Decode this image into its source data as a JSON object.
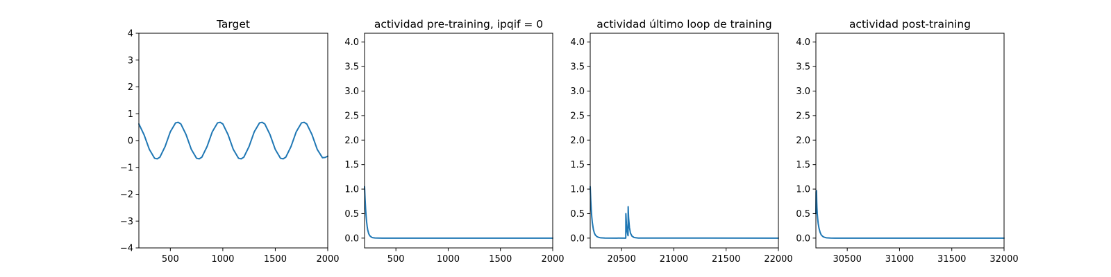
{
  "chart_data": [
    {
      "type": "line",
      "title": "Target",
      "xlabel": "",
      "ylabel": "",
      "xlim": [
        200,
        2000
      ],
      "ylim": [
        -4,
        4
      ],
      "xticks": [
        500,
        1000,
        1500,
        2000
      ],
      "yticks": [
        -4,
        -3,
        -2,
        -1,
        0,
        1,
        2,
        3,
        4
      ],
      "ytick_labels": [
        "−4",
        "−3",
        "−2",
        "−1",
        "0",
        "1",
        "2",
        "3",
        "4"
      ],
      "color": "#1f77b4",
      "series": [
        {
          "x": [
            200,
            250,
            300,
            350,
            375,
            400,
            450,
            500,
            550,
            575,
            600,
            650,
            700,
            750,
            775,
            800,
            850,
            900,
            950,
            975,
            1000,
            1050,
            1100,
            1150,
            1175,
            1200,
            1250,
            1300,
            1350,
            1375,
            1400,
            1450,
            1500,
            1550,
            1575,
            1600,
            1650,
            1700,
            1750,
            1775,
            1800,
            1850,
            1900,
            1950,
            1975,
            2000
          ],
          "y": [
            0.62,
            0.21,
            -0.33,
            -0.66,
            -0.68,
            -0.62,
            -0.22,
            0.33,
            0.66,
            0.68,
            0.62,
            0.22,
            -0.33,
            -0.66,
            -0.68,
            -0.62,
            -0.22,
            0.33,
            0.66,
            0.68,
            0.62,
            0.22,
            -0.33,
            -0.66,
            -0.68,
            -0.62,
            -0.22,
            0.33,
            0.66,
            0.68,
            0.62,
            0.22,
            -0.33,
            -0.66,
            -0.68,
            -0.62,
            -0.22,
            0.33,
            0.66,
            0.68,
            0.62,
            0.22,
            -0.33,
            -0.64,
            -0.63,
            -0.58
          ]
        }
      ]
    },
    {
      "type": "line",
      "title": "actividad pre-training, ipqif = 0",
      "xlabel": "",
      "ylabel": "",
      "xlim": [
        200,
        2000
      ],
      "ylim": [
        -0.2,
        4.18
      ],
      "xticks": [
        500,
        1000,
        1500,
        2000
      ],
      "yticks": [
        0.0,
        0.5,
        1.0,
        1.5,
        2.0,
        2.5,
        3.0,
        3.5,
        4.0
      ],
      "ytick_labels": [
        "0.0",
        "0.5",
        "1.0",
        "1.5",
        "2.0",
        "2.5",
        "3.0",
        "3.5",
        "4.0"
      ],
      "color": "#1f77b4",
      "series": [
        {
          "x": [
            200,
            205,
            210,
            215,
            220,
            225,
            230,
            240,
            250,
            260,
            270,
            280,
            300,
            330,
            370,
            2000
          ],
          "y": [
            1.05,
            0.8,
            0.6,
            0.45,
            0.33,
            0.24,
            0.17,
            0.09,
            0.05,
            0.03,
            0.015,
            0.008,
            0.003,
            0.001,
            0.0,
            0.0
          ]
        }
      ]
    },
    {
      "type": "line",
      "title": "actividad último loop de training",
      "xlabel": "",
      "ylabel": "",
      "xlim": [
        20200,
        22000
      ],
      "ylim": [
        -0.2,
        4.18
      ],
      "xticks": [
        20500,
        21000,
        21500,
        22000
      ],
      "yticks": [
        0.0,
        0.5,
        1.0,
        1.5,
        2.0,
        2.5,
        3.0,
        3.5,
        4.0
      ],
      "ytick_labels": [
        "0.0",
        "0.5",
        "1.0",
        "1.5",
        "2.0",
        "2.5",
        "3.0",
        "3.5",
        "4.0"
      ],
      "color": "#1f77b4",
      "series": [
        {
          "x": [
            20200,
            20205,
            20210,
            20215,
            20220,
            20230,
            20240,
            20250,
            20265,
            20280,
            20300,
            20340,
            20540,
            20541,
            20546,
            20552,
            20558,
            20562,
            20563,
            20567,
            20575,
            20585,
            20600,
            20620,
            20660,
            22000
          ],
          "y": [
            1.05,
            0.78,
            0.58,
            0.43,
            0.32,
            0.18,
            0.1,
            0.06,
            0.03,
            0.015,
            0.006,
            0.001,
            0.0,
            0.5,
            0.3,
            0.15,
            0.08,
            0.05,
            0.64,
            0.42,
            0.22,
            0.1,
            0.04,
            0.012,
            0.002,
            0.0
          ]
        }
      ]
    },
    {
      "type": "line",
      "title": "actividad post-training",
      "xlabel": "",
      "ylabel": "",
      "xlim": [
        30200,
        32000
      ],
      "ylim": [
        -0.2,
        4.18
      ],
      "xticks": [
        30500,
        31000,
        31500,
        32000
      ],
      "yticks": [
        0.0,
        0.5,
        1.0,
        1.5,
        2.0,
        2.5,
        3.0,
        3.5,
        4.0
      ],
      "ytick_labels": [
        "0.0",
        "0.5",
        "1.0",
        "1.5",
        "2.0",
        "2.5",
        "3.0",
        "3.5",
        "4.0"
      ],
      "color": "#1f77b4",
      "series": [
        {
          "x": [
            30200,
            30202,
            30204,
            30206,
            30208,
            30210,
            30213,
            30217,
            30222,
            30230,
            30240,
            30250,
            30265,
            30280,
            30300,
            30340,
            30380,
            32000
          ],
          "y": [
            0.5,
            0.95,
            0.55,
            0.97,
            0.75,
            0.62,
            0.5,
            0.4,
            0.3,
            0.2,
            0.12,
            0.07,
            0.035,
            0.018,
            0.007,
            0.001,
            0.0,
            0.0
          ]
        }
      ]
    }
  ]
}
